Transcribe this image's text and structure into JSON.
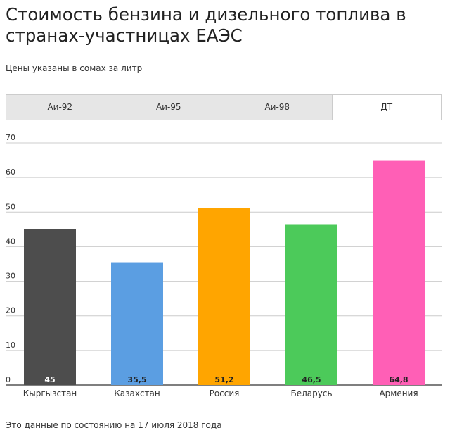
{
  "header": {
    "title": "Стоимость бензина и дизельного топлива в странах-участницах ЕАЭС",
    "subtitle": "Цены указаны в сомах за литр"
  },
  "tabs": [
    {
      "label": "Аи-92",
      "active": false
    },
    {
      "label": "Аи-95",
      "active": false
    },
    {
      "label": "Аи-98",
      "active": false
    },
    {
      "label": "ДТ",
      "active": true
    }
  ],
  "chart_data": {
    "type": "bar",
    "categories": [
      "Кыргызстан",
      "Казахстан",
      "Россия",
      "Беларусь",
      "Армения"
    ],
    "values": [
      45,
      35.5,
      51.2,
      46.5,
      64.8
    ],
    "value_labels": [
      "45",
      "35,5",
      "51,2",
      "46,5",
      "64,8"
    ],
    "colors": [
      "#4d4d4d",
      "#5b9ee2",
      "#ffa500",
      "#4cca5a",
      "#ff5fb6"
    ],
    "label_colors": [
      "#ffffff",
      "#222222",
      "#222222",
      "#222222",
      "#222222"
    ],
    "ylim": [
      0,
      70
    ],
    "yticks": [
      0,
      10,
      20,
      30,
      40,
      50,
      60,
      70
    ],
    "grid": true
  },
  "footnote": "Это данные по состоянию на 17 июля 2018 года"
}
